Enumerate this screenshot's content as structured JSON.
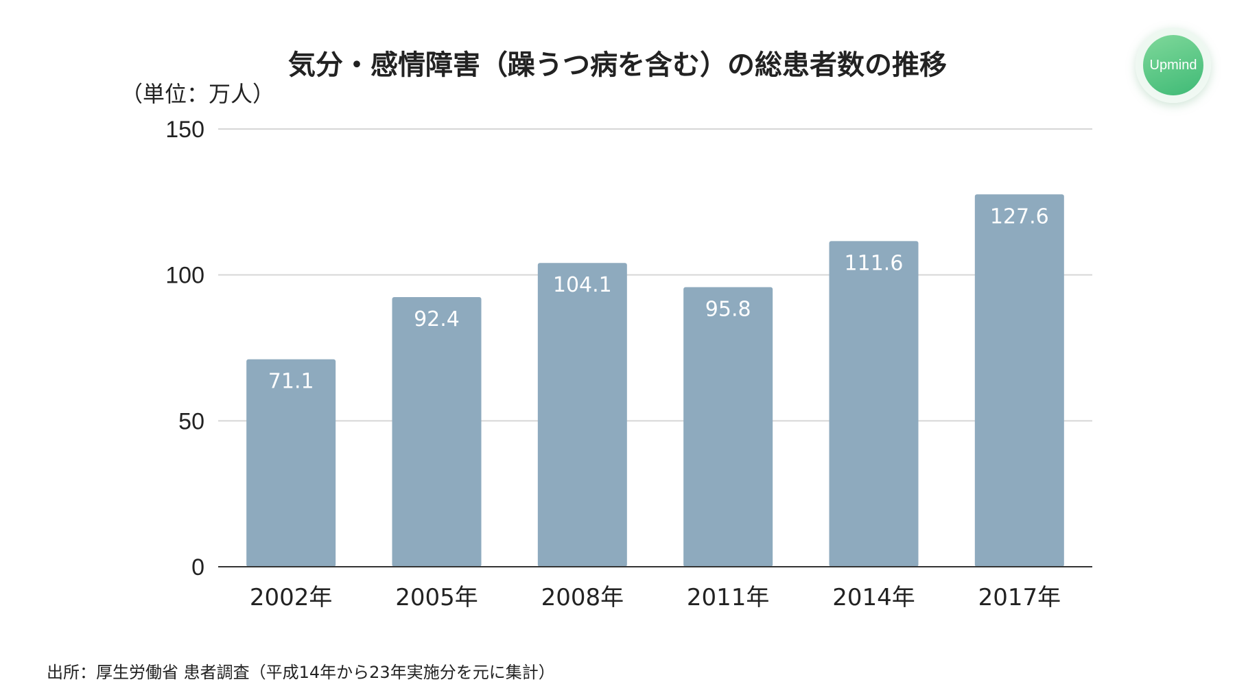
{
  "logo_text": "Upmind",
  "source_text": "出所：厚生労働省 患者調査（平成14年から23年実施分を元に集計）",
  "colors": {
    "bar": "#8eaabe",
    "bar_label": "#ffffff",
    "grid": "#d6d6d6",
    "axis": "#333333",
    "text": "#222222",
    "logo": "#4cc07f"
  },
  "chart_data": {
    "type": "bar",
    "title": "気分・感情障害（躁うつ病を含む）の総患者数の推移",
    "ylabel": "（単位：万人）",
    "xlabel": "",
    "categories": [
      "2002年",
      "2005年",
      "2008年",
      "2011年",
      "2014年",
      "2017年"
    ],
    "values": [
      71.1,
      92.4,
      104.1,
      95.8,
      111.6,
      127.6
    ],
    "data_labels": [
      "71.1",
      "92.4",
      "104.1",
      "95.8",
      "111.6",
      "127.6"
    ],
    "ylim": [
      0,
      150
    ],
    "yticks": [
      0,
      50,
      100,
      150
    ],
    "grid": true,
    "legend": "none"
  }
}
